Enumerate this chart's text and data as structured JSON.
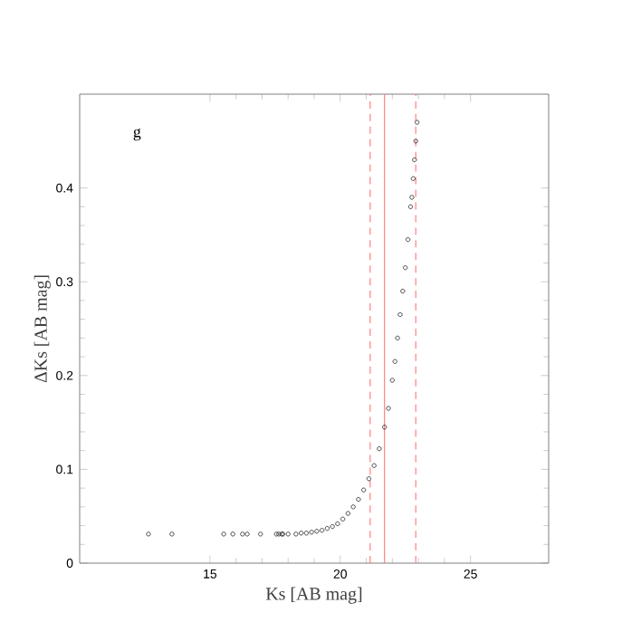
{
  "chart_data": {
    "type": "scatter",
    "xlabel": "Ks  [AB mag]",
    "ylabel": "ΔKs  [AB mag]",
    "annotations": [
      "g"
    ],
    "xlim": [
      10,
      28
    ],
    "ylim": [
      0,
      0.5
    ],
    "xticks": [
      15,
      20,
      25
    ],
    "yticks": [
      0,
      0.1,
      0.2,
      0.3,
      0.4
    ],
    "grid": false,
    "marker": "circle",
    "ref_lines": [
      {
        "axis": "x",
        "value": 21.15,
        "color": "#ff8080",
        "line_style": "dashed"
      },
      {
        "axis": "x",
        "value": 21.7,
        "color": "#ff8080",
        "line_style": "solid"
      },
      {
        "axis": "x",
        "value": 22.9,
        "color": "#ff8080",
        "line_style": "dashed"
      }
    ],
    "series": [
      {
        "color": "#000000",
        "x": [
          12.64,
          13.54,
          15.53,
          15.88,
          16.25,
          16.43,
          16.94,
          17.55,
          17.64,
          17.75,
          17.8,
          18.0,
          18.3,
          18.5,
          18.7,
          18.9,
          19.1,
          19.3,
          19.5,
          19.7,
          19.9,
          20.1,
          20.3,
          20.5,
          20.7,
          20.9,
          21.1,
          21.3,
          21.5,
          21.7,
          21.85,
          22.0,
          22.1,
          22.2,
          22.3,
          22.4,
          22.5,
          22.6,
          22.7,
          22.75,
          22.8,
          22.85,
          22.9,
          22.95
        ],
        "values": [
          0.031,
          0.031,
          0.031,
          0.031,
          0.031,
          0.031,
          0.031,
          0.031,
          0.031,
          0.031,
          0.031,
          0.031,
          0.031,
          0.032,
          0.032,
          0.033,
          0.034,
          0.035,
          0.037,
          0.039,
          0.042,
          0.047,
          0.053,
          0.06,
          0.068,
          0.078,
          0.09,
          0.104,
          0.122,
          0.145,
          0.165,
          0.195,
          0.215,
          0.24,
          0.265,
          0.29,
          0.315,
          0.345,
          0.38,
          0.39,
          0.41,
          0.43,
          0.45,
          0.47
        ]
      }
    ]
  }
}
